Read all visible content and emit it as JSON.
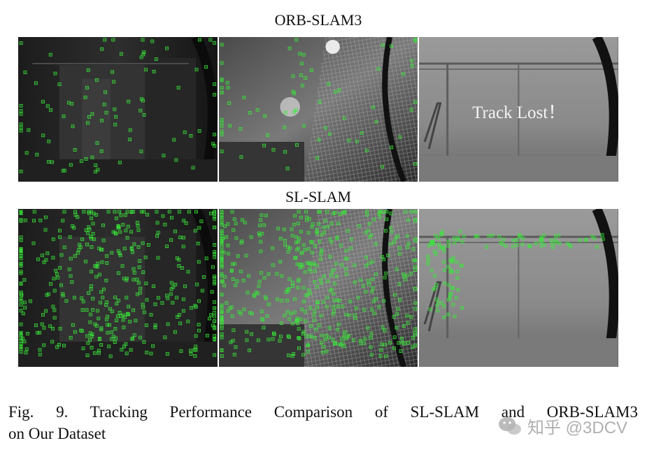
{
  "figure": {
    "top_title": "ORB-SLAM3",
    "bottom_title": "SL-SLAM",
    "lost_message": "Track Lost！",
    "caption_line1": "Fig. 9.  Tracking Performance Comparison of SL-SLAM and ORB-SLAM3",
    "caption_line2": "on Our Dataset"
  },
  "watermark": {
    "text": "知乎 @3DCV",
    "icon": "wechat-bubbles-icon"
  },
  "colors": {
    "feature_marker": "#39e83a",
    "frame_dark": "#242424",
    "frame_light": "#8a8a8a"
  }
}
